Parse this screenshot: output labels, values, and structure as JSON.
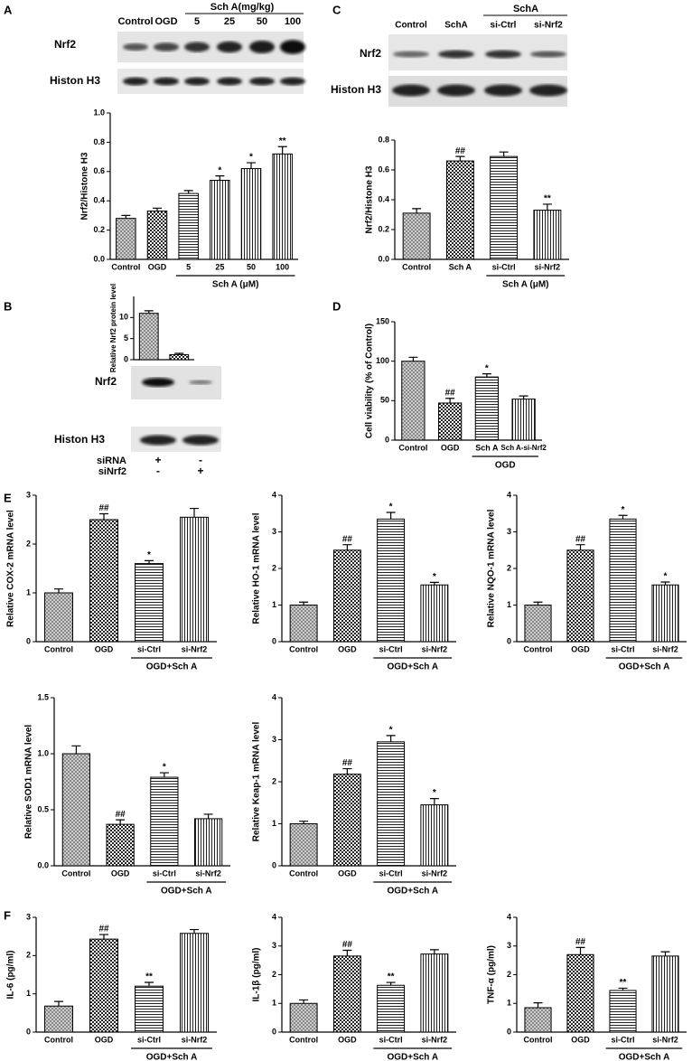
{
  "panels": [
    "A",
    "B",
    "C",
    "D",
    "E",
    "F"
  ],
  "blots": [
    {
      "header": "Sch A(mg/kg)",
      "lanes": [
        "Control",
        "OGD",
        "5",
        "25",
        "50",
        "100"
      ],
      "rows": [
        "Nrf2",
        "Histon H3"
      ]
    },
    {
      "header": "SchA",
      "lanes": [
        "Control",
        "SchA",
        "si-Ctrl",
        "si-Nrf2"
      ],
      "rows": [
        "Nrf2",
        "Histon H3"
      ]
    },
    {
      "rows": [
        "Nrf2",
        "Histon H3"
      ],
      "conditions": [
        {
          "label": "siRNA",
          "cells": [
            "+",
            "-"
          ]
        },
        {
          "label": "siNrf2",
          "cells": [
            "-",
            "+"
          ]
        }
      ]
    }
  ],
  "chart_data": [
    {
      "type": "bar",
      "ylabel": "Nrf2/Histone H3",
      "categories": [
        "Control",
        "OGD",
        "5",
        "25",
        "50",
        "100"
      ],
      "values": [
        0.28,
        0.33,
        0.45,
        0.54,
        0.62,
        0.72
      ],
      "errors": [
        0.02,
        0.02,
        0.02,
        0.03,
        0.04,
        0.05
      ],
      "annotations": [
        null,
        null,
        null,
        "*",
        "*",
        "**"
      ],
      "group_label": "Sch A (μM)",
      "ylim": [
        0,
        1
      ],
      "yticks": [
        {
          "value": 0,
          "label": "0.0"
        },
        0.2,
        0.4,
        0.6,
        0.8,
        {
          "value": 1,
          "label": "1.0"
        }
      ]
    },
    {
      "type": "bar",
      "ylabel": "Nrf2/Histone H3",
      "categories": [
        "Control",
        "Sch A",
        "si-Ctrl",
        "si-Nrf2"
      ],
      "values": [
        0.31,
        0.66,
        0.69,
        0.33
      ],
      "errors": [
        0.03,
        0.03,
        0.03,
        0.04
      ],
      "annotations": [
        null,
        "##",
        null,
        "**"
      ],
      "group_label": "Sch A (μM)",
      "ylim": [
        0,
        0.8
      ],
      "yticks": [
        {
          "value": 0,
          "label": "0.0"
        },
        0.2,
        0.4,
        0.6,
        0.8
      ]
    },
    {
      "type": "bar",
      "ylabel": "Relative Nrf2 protein level",
      "categories": [
        null,
        null
      ],
      "values": [
        11,
        1.2
      ],
      "errors": [
        0.6,
        0.3
      ],
      "annotations": [
        null,
        null
      ],
      "ylim": [
        0,
        15
      ],
      "yticks": [
        0,
        5,
        10
      ]
    },
    {
      "type": "bar",
      "ylabel": "Cell viability (% of Control)",
      "categories": [
        "Control",
        "OGD",
        "Sch A",
        "Sch A-si-Nrf2"
      ],
      "values": [
        100,
        47,
        80,
        52
      ],
      "errors": [
        5,
        6,
        4,
        4
      ],
      "annotations": [
        null,
        "##",
        "*",
        null
      ],
      "group_label": "OGD",
      "ylim": [
        0,
        150
      ],
      "yticks": [
        0,
        50,
        100,
        150
      ]
    },
    {
      "type": "bar",
      "ylabel": "Relative COX-2 mRNA level",
      "categories": [
        "Control",
        "OGD",
        "si-Ctrl",
        "si-Nrf2"
      ],
      "values": [
        1.0,
        2.5,
        1.6,
        2.55
      ],
      "errors": [
        0.08,
        0.12,
        0.06,
        0.18
      ],
      "annotations": [
        null,
        "##",
        "*",
        null
      ],
      "group_label": "OGD+Sch A",
      "ylim": [
        0,
        3
      ],
      "yticks": [
        0,
        1,
        2,
        3
      ]
    },
    {
      "type": "bar",
      "ylabel": "Relative HO-1 mRNA level",
      "categories": [
        "Control",
        "OGD",
        "si-Ctrl",
        "si-Nrf2"
      ],
      "values": [
        1.0,
        2.5,
        3.35,
        1.55
      ],
      "errors": [
        0.08,
        0.15,
        0.18,
        0.07
      ],
      "annotations": [
        null,
        "##",
        "*",
        "*"
      ],
      "group_label": "OGD+Sch A",
      "ylim": [
        0,
        4
      ],
      "yticks": [
        0,
        1,
        2,
        3,
        4
      ]
    },
    {
      "type": "bar",
      "ylabel": "Relative NQO-1 mRNA level",
      "categories": [
        "Control",
        "OGD",
        "si-Ctrl",
        "si-Nrf2"
      ],
      "values": [
        1.0,
        2.5,
        3.35,
        1.55
      ],
      "errors": [
        0.08,
        0.15,
        0.1,
        0.08
      ],
      "annotations": [
        null,
        "##",
        "*",
        "*"
      ],
      "group_label": "OGD+Sch A",
      "ylim": [
        0,
        4
      ],
      "yticks": [
        0,
        1,
        2,
        3,
        4
      ]
    },
    {
      "type": "bar",
      "ylabel": "Relative SOD1 mRNA level",
      "categories": [
        "Control",
        "OGD",
        "si-Ctrl",
        "si-Nrf2"
      ],
      "values": [
        1.0,
        0.37,
        0.79,
        0.42
      ],
      "errors": [
        0.07,
        0.04,
        0.04,
        0.04
      ],
      "annotations": [
        null,
        "##",
        "*",
        null
      ],
      "group_label": "OGD+Sch A",
      "ylim": [
        0,
        1.5
      ],
      "yticks": [
        {
          "value": 0,
          "label": "0.0"
        },
        0.5,
        {
          "value": 1,
          "label": "1.0"
        },
        1.5
      ]
    },
    {
      "type": "bar",
      "ylabel": "Relative Keap-1 mRNA level",
      "categories": [
        "Control",
        "OGD",
        "si-Ctrl",
        "si-Nrf2"
      ],
      "values": [
        1.0,
        2.18,
        2.95,
        1.45
      ],
      "errors": [
        0.06,
        0.13,
        0.15,
        0.15
      ],
      "annotations": [
        null,
        "##",
        "*",
        "*"
      ],
      "group_label": "OGD+Sch A",
      "ylim": [
        0,
        4
      ],
      "yticks": [
        0,
        1,
        2,
        3,
        4
      ]
    },
    {
      "type": "bar",
      "ylabel": "IL-6 (pg/ml)",
      "categories": [
        "Control",
        "OGD",
        "si-Ctrl",
        "si-Nrf2"
      ],
      "values": [
        0.68,
        2.43,
        1.2,
        2.58
      ],
      "errors": [
        0.12,
        0.12,
        0.1,
        0.1
      ],
      "annotations": [
        null,
        "##",
        "**",
        null
      ],
      "group_label": "OGD+Sch A",
      "ylim": [
        0,
        3
      ],
      "yticks": [
        0,
        1,
        2,
        3
      ]
    },
    {
      "type": "bar",
      "ylabel": "IL-1β (pg/ml)",
      "categories": [
        "Control",
        "OGD",
        "si-Ctrl",
        "si-Nrf2"
      ],
      "values": [
        1.0,
        2.65,
        1.63,
        2.72
      ],
      "errors": [
        0.12,
        0.2,
        0.1,
        0.15
      ],
      "annotations": [
        null,
        "##",
        "**",
        null
      ],
      "group_label": "OGD+Sch A",
      "ylim": [
        0,
        4
      ],
      "yticks": [
        0,
        1,
        2,
        3,
        4
      ]
    },
    {
      "type": "bar",
      "ylabel": "TNF-α (pg/ml)",
      "categories": [
        "Control",
        "OGD",
        "si-Ctrl",
        "si-Nrf2"
      ],
      "values": [
        0.85,
        2.7,
        1.45,
        2.65
      ],
      "errors": [
        0.17,
        0.25,
        0.08,
        0.15
      ],
      "annotations": [
        null,
        "##",
        "**",
        null
      ],
      "group_label": "OGD+Sch A",
      "ylim": [
        0,
        4
      ],
      "yticks": [
        0,
        1,
        2,
        3,
        4
      ]
    }
  ]
}
